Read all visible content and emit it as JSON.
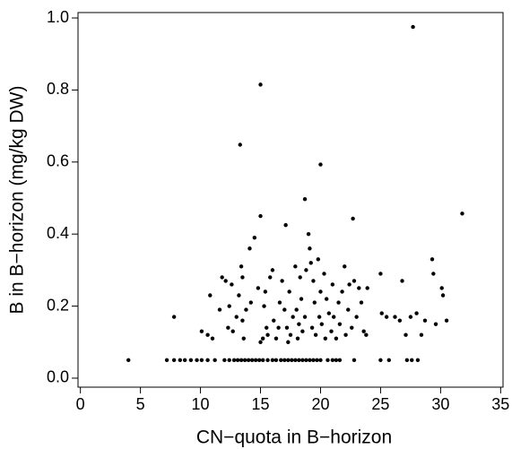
{
  "chart_data": {
    "type": "scatter",
    "x_label": "CN−quota in B−horizon",
    "y_label": "B in B−horizon (mg/kg DW)",
    "xlim": [
      -0.2,
      35.2
    ],
    "ylim": [
      -0.025,
      1.015
    ],
    "xticks": [
      0,
      5,
      10,
      15,
      20,
      25,
      30,
      35
    ],
    "yticks": [
      {
        "value": 0,
        "label": "0.0"
      },
      0.2,
      0.4,
      0.6,
      0.8,
      {
        "value": 1,
        "label": "1.0"
      }
    ],
    "color": "#000000",
    "grid": false,
    "x": [
      27.7,
      15,
      13.3,
      20,
      18.7,
      15,
      22.7,
      31.8,
      17.1,
      4,
      7.2,
      7.8,
      8.3,
      8.7,
      9.2,
      9.7,
      10.1,
      10.6,
      11.2,
      12.0,
      12.4,
      12.8,
      13.1,
      13.4,
      13.7,
      14.0,
      14.3,
      14.6,
      14.9,
      15.2,
      15.6,
      16.0,
      16.3,
      16.7,
      17.0,
      17.3,
      17.6,
      17.9,
      18.2,
      18.5,
      18.8,
      19.1,
      19.4,
      19.7,
      20.0,
      20.6,
      21.0,
      21.3,
      21.6,
      22.8,
      25.0,
      25.7,
      27.2,
      27.6,
      28.1,
      7.8,
      10.1,
      10.6,
      10.8,
      11.0,
      11.6,
      11.8,
      12.1,
      12.3,
      12.4,
      12.6,
      12.7,
      13.0,
      13.2,
      13.4,
      13.5,
      13.5,
      13.6,
      13.8,
      14.1,
      14.2,
      14.5,
      14.8,
      15.0,
      15.2,
      15.3,
      15.4,
      15.5,
      15.6,
      15.8,
      16.0,
      16.1,
      16.3,
      16.5,
      16.6,
      16.8,
      17.0,
      17.2,
      17.3,
      17.4,
      17.5,
      17.7,
      17.9,
      18.0,
      18.1,
      18.2,
      18.3,
      18.4,
      18.5,
      18.7,
      18.8,
      19.0,
      19.1,
      19.2,
      19.3,
      19.4,
      19.5,
      19.6,
      19.8,
      19.9,
      20.0,
      20.1,
      20.3,
      20.4,
      20.5,
      20.7,
      20.9,
      21.0,
      21.1,
      21.3,
      21.5,
      21.6,
      21.8,
      22.0,
      22.1,
      22.3,
      22.4,
      22.6,
      22.8,
      23.0,
      23.2,
      23.4,
      23.6,
      23.8,
      23.9,
      25.0,
      25.1,
      25.5,
      26.2,
      26.6,
      26.8,
      27.1,
      27.5,
      28.0,
      28.4,
      28.7,
      29.3,
      29.4,
      29.6,
      30.1,
      30.2,
      30.5
    ],
    "values": [
      0.975,
      0.815,
      0.648,
      0.593,
      0.497,
      0.45,
      0.443,
      0.457,
      0.425,
      0.05,
      0.05,
      0.05,
      0.05,
      0.05,
      0.05,
      0.05,
      0.05,
      0.05,
      0.05,
      0.05,
      0.05,
      0.05,
      0.05,
      0.05,
      0.05,
      0.05,
      0.05,
      0.05,
      0.05,
      0.05,
      0.05,
      0.05,
      0.05,
      0.05,
      0.05,
      0.05,
      0.05,
      0.05,
      0.05,
      0.05,
      0.05,
      0.05,
      0.05,
      0.05,
      0.05,
      0.05,
      0.05,
      0.05,
      0.05,
      0.05,
      0.05,
      0.05,
      0.05,
      0.05,
      0.05,
      0.17,
      0.13,
      0.12,
      0.23,
      0.11,
      0.19,
      0.28,
      0.27,
      0.14,
      0.2,
      0.26,
      0.13,
      0.17,
      0.23,
      0.31,
      0.28,
      0.16,
      0.11,
      0.19,
      0.36,
      0.21,
      0.39,
      0.25,
      0.1,
      0.11,
      0.2,
      0.24,
      0.14,
      0.12,
      0.28,
      0.3,
      0.16,
      0.11,
      0.14,
      0.21,
      0.27,
      0.19,
      0.14,
      0.1,
      0.24,
      0.12,
      0.17,
      0.31,
      0.19,
      0.11,
      0.15,
      0.28,
      0.22,
      0.13,
      0.17,
      0.3,
      0.4,
      0.36,
      0.32,
      0.14,
      0.27,
      0.21,
      0.12,
      0.33,
      0.17,
      0.24,
      0.15,
      0.29,
      0.11,
      0.22,
      0.18,
      0.13,
      0.26,
      0.17,
      0.11,
      0.21,
      0.15,
      0.24,
      0.31,
      0.12,
      0.19,
      0.26,
      0.14,
      0.27,
      0.17,
      0.25,
      0.21,
      0.13,
      0.12,
      0.25,
      0.29,
      0.18,
      0.17,
      0.17,
      0.16,
      0.27,
      0.12,
      0.17,
      0.18,
      0.12,
      0.16,
      0.33,
      0.29,
      0.15,
      0.25,
      0.23,
      0.16
    ]
  }
}
